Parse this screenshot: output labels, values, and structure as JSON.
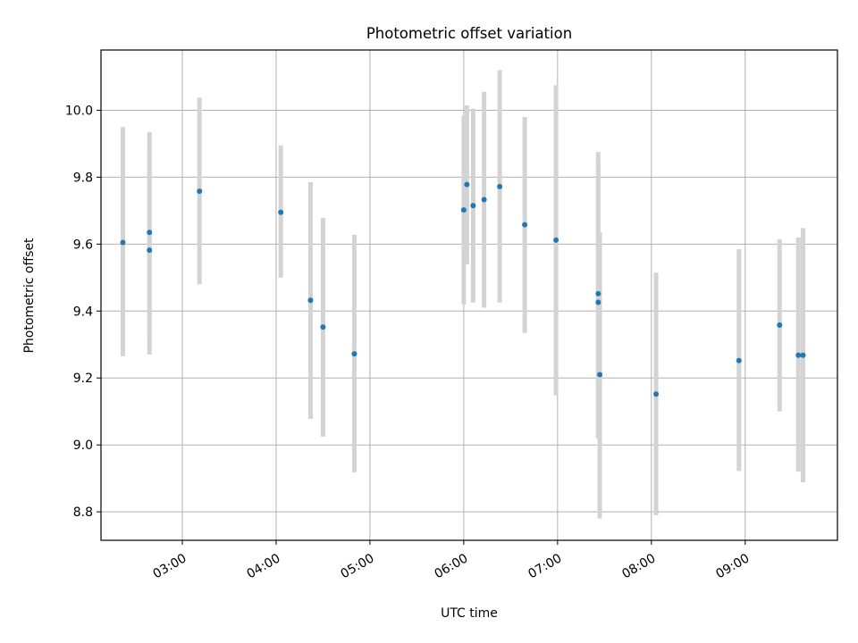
{
  "chart_data": {
    "type": "scatter",
    "title": "Photometric offset variation",
    "xlabel": "UTC time",
    "ylabel": "Photometric offset",
    "x_unit": "UTC time (HH:MM)",
    "xlim": [
      "02:08",
      "09:59"
    ],
    "ylim": [
      8.715,
      10.18
    ],
    "xticks": [
      "03:00",
      "04:00",
      "05:00",
      "06:00",
      "07:00",
      "08:00",
      "09:00"
    ],
    "yticks": [
      "8.8",
      "9.0",
      "9.2",
      "9.4",
      "9.6",
      "9.8",
      "10.0"
    ],
    "grid": true,
    "colors": {
      "points": "#1f77b4",
      "errorbars": "#d3d3d3",
      "grid": "#b0b0b0"
    },
    "points": [
      {
        "x": "02:22",
        "y": 9.605,
        "ylow": 9.265,
        "yhigh": 9.95
      },
      {
        "x": "02:39",
        "y": 9.635,
        "ylow": 9.335,
        "yhigh": 9.935
      },
      {
        "x": "02:39",
        "y": 9.582,
        "ylow": 9.27,
        "yhigh": 9.87
      },
      {
        "x": "03:11",
        "y": 9.758,
        "ylow": 9.48,
        "yhigh": 10.038
      },
      {
        "x": "04:03",
        "y": 9.695,
        "ylow": 9.5,
        "yhigh": 9.895
      },
      {
        "x": "04:22",
        "y": 9.432,
        "ylow": 9.078,
        "yhigh": 9.785
      },
      {
        "x": "04:30",
        "y": 9.352,
        "ylow": 9.025,
        "yhigh": 9.678
      },
      {
        "x": "04:50",
        "y": 9.272,
        "ylow": 8.918,
        "yhigh": 9.628
      },
      {
        "x": "06:00",
        "y": 9.702,
        "ylow": 9.42,
        "yhigh": 9.985
      },
      {
        "x": "06:02",
        "y": 9.778,
        "ylow": 9.54,
        "yhigh": 10.015
      },
      {
        "x": "06:06",
        "y": 9.715,
        "ylow": 9.425,
        "yhigh": 10.005
      },
      {
        "x": "06:13",
        "y": 9.733,
        "ylow": 9.41,
        "yhigh": 10.055
      },
      {
        "x": "06:23",
        "y": 9.772,
        "ylow": 9.425,
        "yhigh": 10.12
      },
      {
        "x": "06:39",
        "y": 9.658,
        "ylow": 9.335,
        "yhigh": 9.98
      },
      {
        "x": "06:59",
        "y": 9.612,
        "ylow": 9.148,
        "yhigh": 10.075
      },
      {
        "x": "07:26",
        "y": 9.452,
        "ylow": 9.02,
        "yhigh": 9.875
      },
      {
        "x": "07:26",
        "y": 9.426,
        "ylow": 9.02,
        "yhigh": 9.835
      },
      {
        "x": "07:27",
        "y": 9.21,
        "ylow": 8.78,
        "yhigh": 9.635
      },
      {
        "x": "08:03",
        "y": 9.152,
        "ylow": 8.79,
        "yhigh": 9.515
      },
      {
        "x": "08:56",
        "y": 9.252,
        "ylow": 8.922,
        "yhigh": 9.585
      },
      {
        "x": "09:22",
        "y": 9.358,
        "ylow": 9.1,
        "yhigh": 9.615
      },
      {
        "x": "09:34",
        "y": 9.268,
        "ylow": 8.92,
        "yhigh": 9.62
      },
      {
        "x": "09:37",
        "y": 9.268,
        "ylow": 8.888,
        "yhigh": 9.648
      }
    ]
  }
}
